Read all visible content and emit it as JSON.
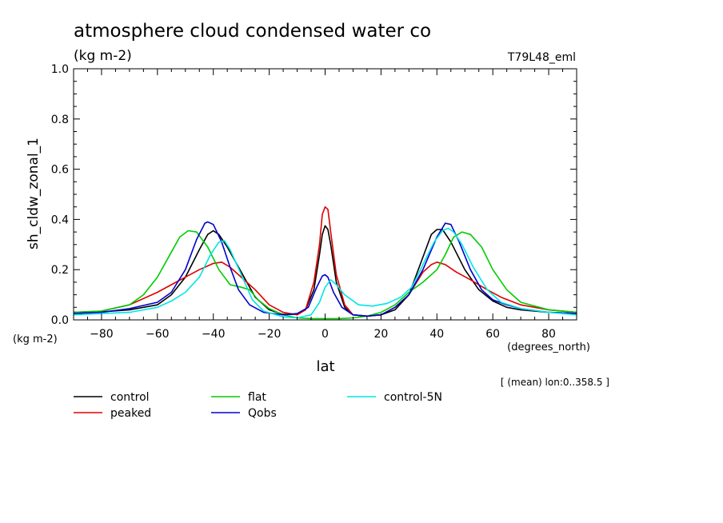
{
  "chart_data": {
    "type": "line",
    "title": "atmosphere cloud condensed water co",
    "subtitle": "(kg m-2)",
    "run_label": "T79L48_eml",
    "ylabel": "sh_cldw_zonal_1",
    "yunits": "(kg m-2)",
    "xlabel": "lat",
    "xunits": "(degrees_north)",
    "footnote": "[ (mean) lon:0..358.5 ]",
    "xlim": [
      -90,
      90
    ],
    "ylim": [
      0,
      1.0
    ],
    "xticks": [
      -80,
      -60,
      -40,
      -20,
      0,
      20,
      40,
      60,
      80
    ],
    "yticks": [
      0.0,
      0.2,
      0.4,
      0.6,
      0.8,
      1.0
    ],
    "xtick_labels": [
      "−80",
      "−60",
      "−40",
      "−20",
      "0",
      "20",
      "40",
      "60",
      "80"
    ],
    "ytick_labels": [
      "0.0",
      "0.2",
      "0.4",
      "0.6",
      "0.8",
      "1.0"
    ],
    "grid": false,
    "legend_position": "bottom",
    "series": [
      {
        "name": "control",
        "color": "#000000",
        "points": [
          [
            -90,
            0.03
          ],
          [
            -80,
            0.032
          ],
          [
            -70,
            0.04
          ],
          [
            -60,
            0.06
          ],
          [
            -55,
            0.1
          ],
          [
            -50,
            0.17
          ],
          [
            -45,
            0.28
          ],
          [
            -42,
            0.34
          ],
          [
            -40,
            0.355
          ],
          [
            -38,
            0.34
          ],
          [
            -35,
            0.29
          ],
          [
            -30,
            0.19
          ],
          [
            -25,
            0.09
          ],
          [
            -20,
            0.04
          ],
          [
            -15,
            0.022
          ],
          [
            -10,
            0.022
          ],
          [
            -7,
            0.04
          ],
          [
            -4,
            0.12
          ],
          [
            -2,
            0.26
          ],
          [
            -1,
            0.34
          ],
          [
            0,
            0.375
          ],
          [
            1,
            0.36
          ],
          [
            2,
            0.3
          ],
          [
            4,
            0.15
          ],
          [
            7,
            0.05
          ],
          [
            10,
            0.02
          ],
          [
            15,
            0.015
          ],
          [
            20,
            0.02
          ],
          [
            25,
            0.04
          ],
          [
            30,
            0.1
          ],
          [
            35,
            0.25
          ],
          [
            38,
            0.34
          ],
          [
            40,
            0.36
          ],
          [
            42,
            0.36
          ],
          [
            45,
            0.31
          ],
          [
            50,
            0.2
          ],
          [
            55,
            0.12
          ],
          [
            60,
            0.075
          ],
          [
            65,
            0.05
          ],
          [
            70,
            0.04
          ],
          [
            80,
            0.03
          ],
          [
            90,
            0.025
          ]
        ]
      },
      {
        "name": "peaked",
        "color": "#dd0000",
        "points": [
          [
            -90,
            0.03
          ],
          [
            -80,
            0.035
          ],
          [
            -70,
            0.06
          ],
          [
            -60,
            0.11
          ],
          [
            -55,
            0.14
          ],
          [
            -50,
            0.17
          ],
          [
            -45,
            0.2
          ],
          [
            -40,
            0.225
          ],
          [
            -37,
            0.23
          ],
          [
            -34,
            0.21
          ],
          [
            -30,
            0.17
          ],
          [
            -25,
            0.12
          ],
          [
            -20,
            0.06
          ],
          [
            -15,
            0.03
          ],
          [
            -10,
            0.02
          ],
          [
            -7,
            0.04
          ],
          [
            -4,
            0.15
          ],
          [
            -2,
            0.3
          ],
          [
            -1,
            0.42
          ],
          [
            0,
            0.45
          ],
          [
            1,
            0.44
          ],
          [
            2,
            0.35
          ],
          [
            4,
            0.18
          ],
          [
            7,
            0.06
          ],
          [
            10,
            0.02
          ],
          [
            15,
            0.015
          ],
          [
            20,
            0.02
          ],
          [
            25,
            0.05
          ],
          [
            30,
            0.1
          ],
          [
            35,
            0.19
          ],
          [
            38,
            0.22
          ],
          [
            40,
            0.23
          ],
          [
            43,
            0.22
          ],
          [
            47,
            0.19
          ],
          [
            52,
            0.16
          ],
          [
            58,
            0.12
          ],
          [
            63,
            0.09
          ],
          [
            70,
            0.06
          ],
          [
            80,
            0.04
          ],
          [
            90,
            0.03
          ]
        ]
      },
      {
        "name": "flat",
        "color": "#00cc00",
        "points": [
          [
            -90,
            0.03
          ],
          [
            -80,
            0.035
          ],
          [
            -70,
            0.06
          ],
          [
            -65,
            0.1
          ],
          [
            -60,
            0.17
          ],
          [
            -55,
            0.27
          ],
          [
            -52,
            0.33
          ],
          [
            -49,
            0.355
          ],
          [
            -46,
            0.35
          ],
          [
            -42,
            0.29
          ],
          [
            -38,
            0.2
          ],
          [
            -34,
            0.14
          ],
          [
            -30,
            0.13
          ],
          [
            -27,
            0.12
          ],
          [
            -24,
            0.08
          ],
          [
            -20,
            0.045
          ],
          [
            -15,
            0.02
          ],
          [
            -10,
            0.008
          ],
          [
            -5,
            0.005
          ],
          [
            0,
            0.005
          ],
          [
            5,
            0.005
          ],
          [
            10,
            0.008
          ],
          [
            15,
            0.015
          ],
          [
            20,
            0.03
          ],
          [
            25,
            0.06
          ],
          [
            30,
            0.11
          ],
          [
            35,
            0.15
          ],
          [
            40,
            0.2
          ],
          [
            43,
            0.26
          ],
          [
            46,
            0.33
          ],
          [
            49,
            0.35
          ],
          [
            52,
            0.34
          ],
          [
            56,
            0.29
          ],
          [
            60,
            0.2
          ],
          [
            65,
            0.12
          ],
          [
            70,
            0.07
          ],
          [
            80,
            0.04
          ],
          [
            90,
            0.03
          ]
        ]
      },
      {
        "name": "Qobs",
        "color": "#0000cc",
        "points": [
          [
            -90,
            0.025
          ],
          [
            -80,
            0.03
          ],
          [
            -70,
            0.045
          ],
          [
            -60,
            0.07
          ],
          [
            -55,
            0.11
          ],
          [
            -50,
            0.2
          ],
          [
            -46,
            0.32
          ],
          [
            -43,
            0.385
          ],
          [
            -42,
            0.39
          ],
          [
            -40,
            0.38
          ],
          [
            -37,
            0.31
          ],
          [
            -34,
            0.21
          ],
          [
            -31,
            0.12
          ],
          [
            -27,
            0.06
          ],
          [
            -22,
            0.03
          ],
          [
            -15,
            0.02
          ],
          [
            -10,
            0.025
          ],
          [
            -6,
            0.05
          ],
          [
            -3,
            0.13
          ],
          [
            -1,
            0.175
          ],
          [
            0,
            0.18
          ],
          [
            1,
            0.17
          ],
          [
            3,
            0.11
          ],
          [
            6,
            0.05
          ],
          [
            10,
            0.02
          ],
          [
            15,
            0.015
          ],
          [
            20,
            0.02
          ],
          [
            25,
            0.05
          ],
          [
            30,
            0.1
          ],
          [
            35,
            0.2
          ],
          [
            40,
            0.33
          ],
          [
            43,
            0.385
          ],
          [
            45,
            0.38
          ],
          [
            48,
            0.31
          ],
          [
            52,
            0.2
          ],
          [
            56,
            0.12
          ],
          [
            60,
            0.08
          ],
          [
            65,
            0.06
          ],
          [
            70,
            0.045
          ],
          [
            80,
            0.03
          ],
          [
            90,
            0.025
          ]
        ]
      },
      {
        "name": "control-5N",
        "color": "#00e5e5",
        "points": [
          [
            -90,
            0.02
          ],
          [
            -80,
            0.025
          ],
          [
            -70,
            0.03
          ],
          [
            -60,
            0.05
          ],
          [
            -55,
            0.075
          ],
          [
            -50,
            0.11
          ],
          [
            -45,
            0.17
          ],
          [
            -41,
            0.26
          ],
          [
            -38,
            0.31
          ],
          [
            -36,
            0.315
          ],
          [
            -34,
            0.28
          ],
          [
            -30,
            0.18
          ],
          [
            -26,
            0.08
          ],
          [
            -22,
            0.035
          ],
          [
            -15,
            0.012
          ],
          [
            -10,
            0.008
          ],
          [
            -5,
            0.02
          ],
          [
            -2,
            0.07
          ],
          [
            0,
            0.13
          ],
          [
            2,
            0.16
          ],
          [
            4,
            0.14
          ],
          [
            7,
            0.1
          ],
          [
            12,
            0.06
          ],
          [
            17,
            0.055
          ],
          [
            22,
            0.065
          ],
          [
            27,
            0.09
          ],
          [
            31,
            0.13
          ],
          [
            35,
            0.22
          ],
          [
            39,
            0.31
          ],
          [
            42,
            0.355
          ],
          [
            44,
            0.365
          ],
          [
            46,
            0.35
          ],
          [
            49,
            0.3
          ],
          [
            53,
            0.21
          ],
          [
            58,
            0.12
          ],
          [
            63,
            0.07
          ],
          [
            70,
            0.045
          ],
          [
            80,
            0.03
          ],
          [
            90,
            0.02
          ]
        ]
      }
    ]
  }
}
